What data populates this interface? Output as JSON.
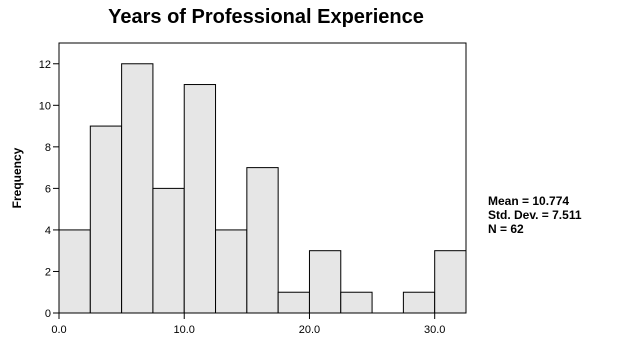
{
  "chart_data": {
    "type": "bar",
    "title": "Years of Professional Experience",
    "xlabel": "",
    "ylabel": "Frequency",
    "bin_edges": [
      0.0,
      2.5,
      5.0,
      7.5,
      10.0,
      12.5,
      15.0,
      17.5,
      20.0,
      22.5,
      25.0,
      27.5,
      30.0,
      32.5
    ],
    "values": [
      4,
      9,
      12,
      6,
      11,
      4,
      7,
      1,
      3,
      1,
      0,
      1,
      3
    ],
    "xlim": [
      0,
      32.5
    ],
    "ylim": [
      0,
      13
    ],
    "x_ticks": [
      0,
      10,
      20,
      30
    ],
    "x_tick_labels": [
      "0.0",
      "10.0",
      "20.0",
      "30.0"
    ],
    "y_ticks": [
      0,
      2,
      4,
      6,
      8,
      10,
      12
    ],
    "y_tick_labels": [
      "0",
      "2",
      "4",
      "6",
      "8",
      "10",
      "12"
    ],
    "grid": false,
    "bar_color": "#e6e6e6",
    "stats": {
      "mean": "Mean = 10.774",
      "std_dev": "Std. Dev. = 7.511",
      "n": "N = 62"
    }
  }
}
